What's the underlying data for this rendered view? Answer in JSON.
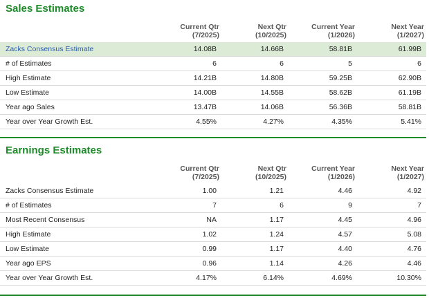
{
  "sales": {
    "title": "Sales Estimates",
    "headers": [
      [
        "Current Qtr",
        "(7/2025)"
      ],
      [
        "Next Qtr",
        "(10/2025)"
      ],
      [
        "Current Year",
        "(1/2026)"
      ],
      [
        "Next Year",
        "(1/2027)"
      ]
    ],
    "rows": [
      {
        "label": "Zacks Consensus Estimate",
        "values": [
          "14.08B",
          "14.66B",
          "58.81B",
          "61.99B"
        ]
      },
      {
        "label": "# of Estimates",
        "values": [
          "6",
          "6",
          "5",
          "6"
        ]
      },
      {
        "label": "High Estimate",
        "values": [
          "14.21B",
          "14.80B",
          "59.25B",
          "62.90B"
        ]
      },
      {
        "label": "Low Estimate",
        "values": [
          "14.00B",
          "14.55B",
          "58.62B",
          "61.19B"
        ]
      },
      {
        "label": "Year ago Sales",
        "values": [
          "13.47B",
          "14.06B",
          "56.36B",
          "58.81B"
        ]
      },
      {
        "label": "Year over Year Growth Est.",
        "values": [
          "4.55%",
          "4.27%",
          "4.35%",
          "5.41%"
        ]
      }
    ]
  },
  "earnings": {
    "title": "Earnings Estimates",
    "headers": [
      [
        "Current Qtr",
        "(7/2025)"
      ],
      [
        "Next Qtr",
        "(10/2025)"
      ],
      [
        "Current Year",
        "(1/2026)"
      ],
      [
        "Next Year",
        "(1/2027)"
      ]
    ],
    "rows": [
      {
        "label": "Zacks Consensus Estimate",
        "values": [
          "1.00",
          "1.21",
          "4.46",
          "4.92"
        ]
      },
      {
        "label": "# of Estimates",
        "values": [
          "7",
          "6",
          "9",
          "7"
        ]
      },
      {
        "label": "Most Recent Consensus",
        "values": [
          "NA",
          "1.17",
          "4.45",
          "4.96"
        ]
      },
      {
        "label": "High Estimate",
        "values": [
          "1.02",
          "1.24",
          "4.57",
          "5.08"
        ]
      },
      {
        "label": "Low Estimate",
        "values": [
          "0.99",
          "1.17",
          "4.40",
          "4.76"
        ]
      },
      {
        "label": "Year ago EPS",
        "values": [
          "0.96",
          "1.14",
          "4.26",
          "4.46"
        ]
      },
      {
        "label": "Year over Year Growth Est.",
        "values": [
          "4.17%",
          "6.14%",
          "4.69%",
          "10.30%"
        ]
      }
    ]
  },
  "colors": {
    "accent": "#1e8a2a",
    "highlight": "#dcebd6",
    "link": "#2a5db0"
  }
}
